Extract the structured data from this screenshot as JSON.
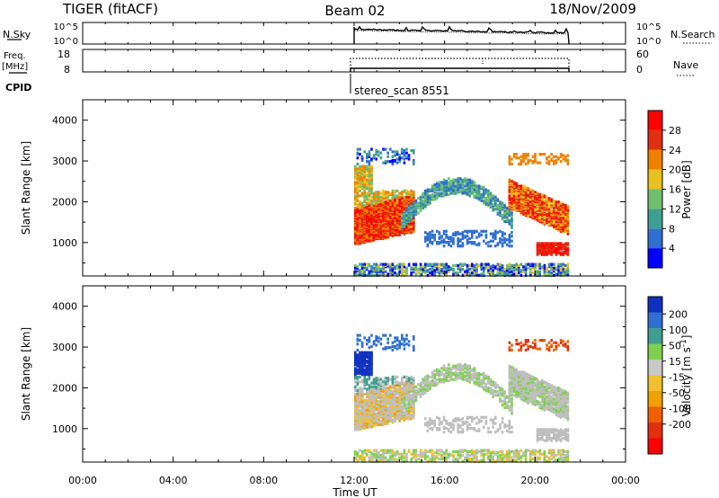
{
  "header": {
    "left_title": "TIGER (fitACF)",
    "center_title": "Beam 02",
    "right_title": "18/Nov/2009"
  },
  "colors": {
    "power_scale": [
      "#0000ff",
      "#2f6fd0",
      "#3f9f8f",
      "#6fbf6f",
      "#e8c020",
      "#f08000",
      "#e03010",
      "#ff0000"
    ],
    "velocity_scale": [
      "#1030c0",
      "#2f6fd0",
      "#3f9f8f",
      "#7fd04f",
      "#c8c8c8",
      "#f0c030",
      "#f0a000",
      "#f06000",
      "#e03010",
      "#ff0000"
    ],
    "ground_scatter": "#bebebe"
  },
  "top_panels": {
    "nsky_label": "N.Sky",
    "nsky_ticks_left": [
      "10^5",
      "10^0"
    ],
    "nsky_ticks_right": [
      "10^5",
      "10^0"
    ],
    "nsearch_label": "N.Search",
    "freq_label_1": "Freq.",
    "freq_label_2": "[MHz]",
    "freq_ticks": [
      "18",
      "8"
    ],
    "nave_ticks": [
      "60",
      "0"
    ],
    "nave_label": "Nave",
    "cpid_label": "CPID",
    "cpid_text": "stereo_scan 8551"
  },
  "chart_data": [
    {
      "type": "heatmap",
      "panel": "power",
      "ylabel": "Slant Range [km]",
      "ylim": [
        180,
        4500
      ],
      "yticks": [
        1000,
        2000,
        3000,
        4000
      ],
      "xlim_hours": [
        0,
        24
      ],
      "colorbar": {
        "label": "Power [dB]",
        "ticks": [
          "4",
          "8",
          "12",
          "16",
          "20",
          "24",
          "28"
        ],
        "levels": 8,
        "range": [
          0,
          32
        ]
      },
      "data_start_hour": 12.0,
      "data_end_hour": 21.5,
      "features": [
        {
          "name": "dense scatter 12-14.5 UT",
          "x": [
            12.0,
            14.5
          ],
          "y": [
            900,
            2300
          ],
          "value": "high"
        },
        {
          "name": "arc 14-19 UT",
          "x": [
            14.0,
            19.0
          ],
          "y": [
            1400,
            2400
          ],
          "value": "low-mid"
        },
        {
          "name": "band 19-21.5 UT",
          "x": [
            18.8,
            21.5
          ],
          "y": [
            1000,
            2400
          ],
          "value": "high"
        }
      ]
    },
    {
      "type": "heatmap",
      "panel": "velocity",
      "ylabel": "Slant Range [km]",
      "ylim": [
        180,
        4500
      ],
      "yticks": [
        1000,
        2000,
        3000,
        4000
      ],
      "xlim_hours": [
        0,
        24
      ],
      "colorbar": {
        "label": "Velocity [m s^-1]",
        "ticks": [
          "200",
          "100",
          "50",
          "15",
          "-15",
          "-50",
          "-100",
          "-200"
        ]
      },
      "data_start_hour": 12.0,
      "data_end_hour": 21.5,
      "xticks": [
        "00:00",
        "04:00",
        "08:00",
        "12:00",
        "16:00",
        "20:00",
        "00:00"
      ],
      "xlabel": "Time UT"
    }
  ]
}
